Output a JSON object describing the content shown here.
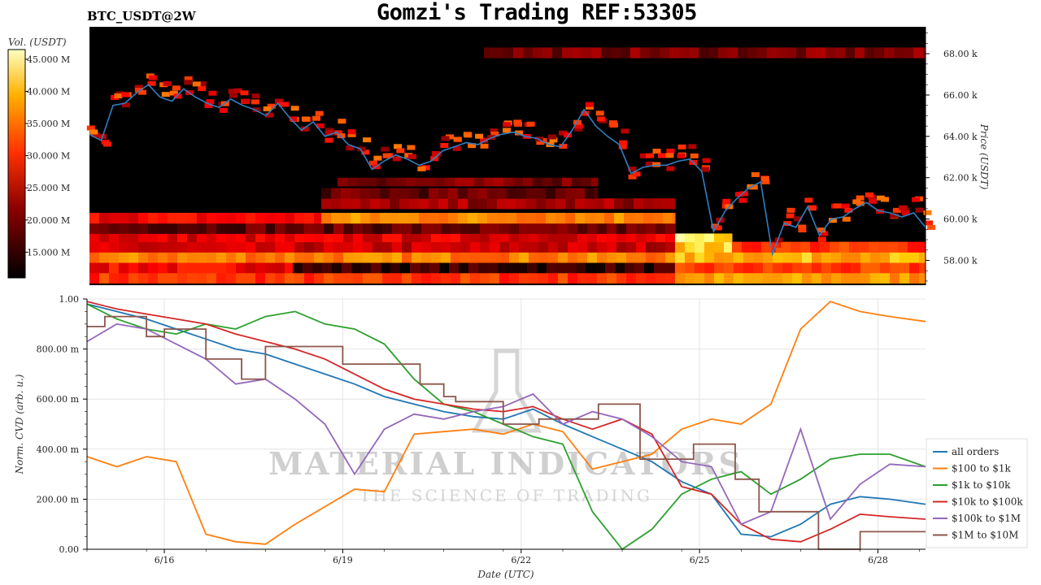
{
  "title": "Gomzi's Trading REF:53305",
  "symbol": "BTC_USDT@2W",
  "watermark": {
    "line1": "MATERIAL INDICATORS",
    "line2": "THE SCIENCE OF TRADING"
  },
  "colors": {
    "price_line": "#2f7fc1"
  },
  "chart_data": [
    {
      "type": "heatmap",
      "name": "order-book-heatmap",
      "y_right_label": "Price (USDT)",
      "y_ticks": [
        "58.00 k",
        "60.00 k",
        "62.00 k",
        "64.00 k",
        "66.00 k",
        "68.00 k"
      ],
      "y_tick_values": [
        58000,
        60000,
        62000,
        64000,
        66000,
        68000
      ],
      "ylim": [
        56800,
        69300
      ],
      "colorbar": {
        "label": "Vol. (USDT)",
        "ticks": [
          "15.000 M",
          "20.000 M",
          "25.000 M",
          "30.000 M",
          "35.000 M",
          "40.000 M",
          "45.000 M"
        ],
        "tick_values": [
          15,
          20,
          25,
          30,
          35,
          40,
          45
        ],
        "range": [
          11,
          46.5
        ]
      },
      "price_line": [
        [
          0,
          64.1
        ],
        [
          1,
          63.8
        ],
        [
          2,
          65.5
        ],
        [
          3,
          65.6
        ],
        [
          4,
          66.1
        ],
        [
          5,
          66.5
        ],
        [
          6,
          65.9
        ],
        [
          7,
          65.7
        ],
        [
          8,
          66.3
        ],
        [
          9,
          65.9
        ],
        [
          10,
          65.6
        ],
        [
          11,
          65.4
        ],
        [
          12,
          65.8
        ],
        [
          13,
          65.5
        ],
        [
          14,
          65.3
        ],
        [
          15,
          65.0
        ],
        [
          16,
          65.6
        ],
        [
          17,
          64.9
        ],
        [
          18,
          64.3
        ],
        [
          19,
          64.7
        ],
        [
          20,
          64.0
        ],
        [
          21,
          64.2
        ],
        [
          22,
          63.6
        ],
        [
          23,
          63.4
        ],
        [
          24,
          62.4
        ],
        [
          25,
          62.8
        ],
        [
          26,
          63.1
        ],
        [
          27,
          62.9
        ],
        [
          28,
          62.6
        ],
        [
          29,
          62.8
        ],
        [
          30,
          63.3
        ],
        [
          31,
          63.5
        ],
        [
          32,
          63.7
        ],
        [
          33,
          63.6
        ],
        [
          34,
          63.9
        ],
        [
          35,
          64.1
        ],
        [
          36,
          64.2
        ],
        [
          37,
          64.0
        ],
        [
          38,
          63.9
        ],
        [
          39,
          63.6
        ],
        [
          40,
          63.5
        ],
        [
          41,
          64.3
        ],
        [
          42,
          65.3
        ],
        [
          43,
          64.5
        ],
        [
          44,
          64.0
        ],
        [
          45,
          63.6
        ],
        [
          46,
          62.2
        ],
        [
          47,
          62.5
        ],
        [
          48,
          62.6
        ],
        [
          49,
          62.6
        ],
        [
          50,
          62.8
        ],
        [
          51,
          62.9
        ],
        [
          52,
          62.3
        ],
        [
          53,
          59.4
        ],
        [
          54,
          60.4
        ],
        [
          55,
          61.0
        ],
        [
          56,
          61.5
        ],
        [
          57,
          61.8
        ],
        [
          58,
          58.3
        ],
        [
          59,
          59.8
        ],
        [
          60,
          59.6
        ],
        [
          61,
          60.6
        ],
        [
          62,
          59.2
        ],
        [
          63,
          60.0
        ],
        [
          64,
          60.1
        ],
        [
          65,
          60.5
        ],
        [
          66,
          60.8
        ],
        [
          67,
          60.4
        ],
        [
          68,
          60.3
        ],
        [
          69,
          60.1
        ],
        [
          70,
          60.3
        ],
        [
          71,
          59.6
        ]
      ]
    },
    {
      "type": "line",
      "name": "normalized-cvd",
      "xlabel": "Date (UTC)",
      "ylabel": "Norm. CVD (arb. u.)",
      "x_ticks": [
        "6/16",
        "6/19",
        "6/22",
        "6/25",
        "6/28"
      ],
      "x_tick_values": [
        1.3,
        4.3,
        7.3,
        10.3,
        13.3
      ],
      "xlim": [
        0,
        14.1
      ],
      "y_ticks": [
        "0.00",
        "200.00 m",
        "400.00 m",
        "600.00 m",
        "800.00 m",
        "1.00"
      ],
      "y_tick_values": [
        0,
        0.2,
        0.4,
        0.6,
        0.8,
        1.0
      ],
      "ylim": [
        0,
        1.0
      ],
      "legend_position": "bottom-right",
      "series": [
        {
          "name": "all orders",
          "color": "#1f77b4",
          "x": [
            0,
            0.5,
            1,
            1.5,
            2,
            2.5,
            3,
            3.5,
            4,
            4.5,
            5,
            5.5,
            6,
            6.5,
            7,
            7.5,
            8,
            8.5,
            9,
            9.5,
            10,
            10.5,
            11,
            11.5,
            12,
            12.5,
            13,
            13.5,
            14.1
          ],
          "y": [
            0.98,
            0.95,
            0.92,
            0.88,
            0.84,
            0.8,
            0.78,
            0.74,
            0.7,
            0.66,
            0.61,
            0.58,
            0.55,
            0.53,
            0.52,
            0.56,
            0.5,
            0.45,
            0.4,
            0.35,
            0.27,
            0.22,
            0.06,
            0.05,
            0.1,
            0.18,
            0.21,
            0.2,
            0.18
          ]
        },
        {
          "name": "$100 to $1k",
          "color": "#ff7f0e",
          "x": [
            0,
            0.5,
            1,
            1.5,
            2,
            2.5,
            3,
            3.5,
            4,
            4.5,
            5,
            5.5,
            6,
            6.5,
            7,
            7.5,
            8,
            8.5,
            9,
            9.5,
            10,
            10.5,
            11,
            11.5,
            12,
            12.5,
            13,
            13.5,
            14.1
          ],
          "y": [
            0.37,
            0.33,
            0.37,
            0.35,
            0.06,
            0.03,
            0.02,
            0.1,
            0.17,
            0.24,
            0.23,
            0.46,
            0.47,
            0.48,
            0.46,
            0.5,
            0.47,
            0.32,
            0.35,
            0.38,
            0.48,
            0.52,
            0.5,
            0.58,
            0.88,
            0.99,
            0.95,
            0.93,
            0.91
          ]
        },
        {
          "name": "$1k to $10k",
          "color": "#2ca02c",
          "x": [
            0,
            0.5,
            1,
            1.5,
            2,
            2.5,
            3,
            3.5,
            4,
            4.5,
            5,
            5.5,
            6,
            6.5,
            7,
            7.5,
            8,
            8.5,
            9,
            9.5,
            10,
            10.5,
            11,
            11.5,
            12,
            12.5,
            13,
            13.5,
            14.1
          ],
          "y": [
            0.98,
            0.92,
            0.88,
            0.86,
            0.9,
            0.88,
            0.93,
            0.95,
            0.9,
            0.88,
            0.82,
            0.68,
            0.58,
            0.55,
            0.5,
            0.45,
            0.42,
            0.15,
            0.0,
            0.08,
            0.22,
            0.28,
            0.31,
            0.22,
            0.28,
            0.36,
            0.38,
            0.38,
            0.33
          ]
        },
        {
          "name": "$10k to $100k",
          "color": "#d62728",
          "x": [
            0,
            0.5,
            1,
            1.5,
            2,
            2.5,
            3,
            3.5,
            4,
            4.5,
            5,
            5.5,
            6,
            6.5,
            7,
            7.5,
            8,
            8.5,
            9,
            9.5,
            10,
            10.5,
            11,
            11.5,
            12,
            12.5,
            13,
            13.5,
            14.1
          ],
          "y": [
            0.99,
            0.96,
            0.94,
            0.92,
            0.9,
            0.86,
            0.83,
            0.8,
            0.76,
            0.7,
            0.64,
            0.6,
            0.58,
            0.56,
            0.55,
            0.57,
            0.52,
            0.48,
            0.52,
            0.46,
            0.25,
            0.22,
            0.1,
            0.04,
            0.03,
            0.08,
            0.14,
            0.13,
            0.12
          ]
        },
        {
          "name": "$100k to $1M",
          "color": "#9467bd",
          "x": [
            0,
            0.5,
            1,
            1.5,
            2,
            2.5,
            3,
            3.5,
            4,
            4.5,
            5,
            5.5,
            6,
            6.5,
            7,
            7.5,
            8,
            8.5,
            9,
            9.5,
            10,
            10.5,
            11,
            11.5,
            12,
            12.5,
            13,
            13.5,
            14.1
          ],
          "y": [
            0.83,
            0.9,
            0.88,
            0.82,
            0.76,
            0.66,
            0.68,
            0.6,
            0.5,
            0.3,
            0.48,
            0.54,
            0.52,
            0.55,
            0.57,
            0.62,
            0.5,
            0.55,
            0.52,
            0.45,
            0.35,
            0.33,
            0.1,
            0.15,
            0.48,
            0.12,
            0.26,
            0.34,
            0.33
          ]
        },
        {
          "name": "$1M to $10M",
          "color": "#8c564b",
          "x": [
            0,
            0.3,
            0.3,
            1.0,
            1.0,
            1.3,
            1.3,
            2.0,
            2.0,
            2.6,
            2.6,
            3.0,
            3.0,
            4.3,
            4.3,
            5.6,
            5.6,
            6.0,
            6.0,
            6.2,
            6.2,
            7.0,
            7.0,
            7.6,
            7.6,
            8.6,
            8.6,
            9.3,
            9.3,
            10.2,
            10.2,
            10.9,
            10.9,
            11.3,
            11.3,
            12.3,
            12.3,
            13.0,
            13.0,
            14.1
          ],
          "y": [
            0.89,
            0.89,
            0.93,
            0.93,
            0.85,
            0.85,
            0.88,
            0.88,
            0.76,
            0.76,
            0.68,
            0.68,
            0.81,
            0.81,
            0.74,
            0.74,
            0.66,
            0.66,
            0.61,
            0.61,
            0.59,
            0.59,
            0.5,
            0.5,
            0.52,
            0.52,
            0.58,
            0.58,
            0.36,
            0.36,
            0.42,
            0.42,
            0.28,
            0.28,
            0.15,
            0.15,
            0.0,
            0.0,
            0.07,
            0.07
          ]
        }
      ]
    }
  ]
}
